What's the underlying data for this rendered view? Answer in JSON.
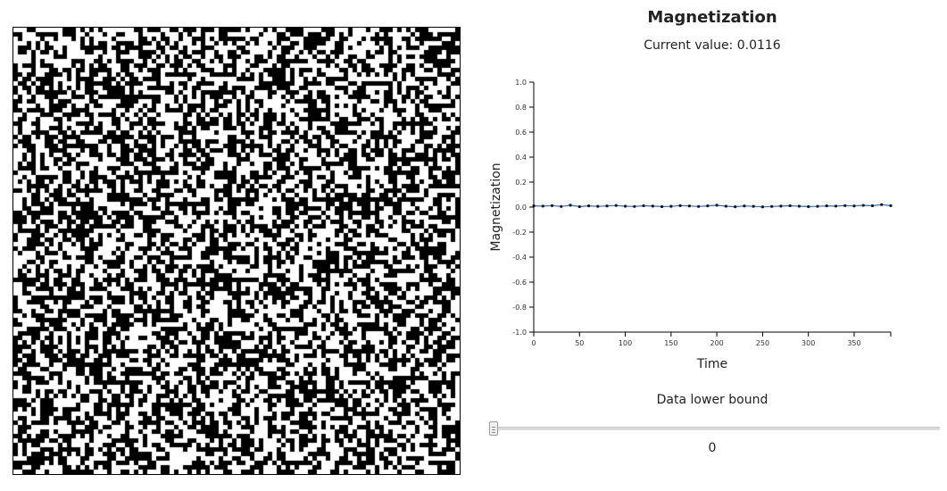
{
  "lattice": {
    "size": 100,
    "up_color": "#000000",
    "down_color": "#ffffff"
  },
  "magnetization": {
    "title": "Magnetization",
    "current_label": "Current value: 0.0116",
    "current_value": 0.0116
  },
  "chart_data": {
    "type": "line",
    "title": "",
    "xlabel": "Time",
    "ylabel": "Magnetization",
    "xlim": [
      0,
      390
    ],
    "ylim": [
      -1.0,
      1.0
    ],
    "xticks": [
      0,
      50,
      100,
      150,
      200,
      250,
      300,
      350
    ],
    "yticks": [
      -1.0,
      -0.8,
      -0.6,
      -0.4,
      -0.2,
      0.0,
      0.2,
      0.4,
      0.6,
      0.8,
      1.0
    ],
    "xtick_labels": [
      "0",
      "50",
      "100",
      "150",
      "200",
      "250",
      "300",
      "350"
    ],
    "ytick_labels": [
      "-1.0",
      "-0.8",
      "-0.6",
      "-0.4",
      "-0.2",
      "0.0",
      "0.2",
      "0.4",
      "0.6",
      "0.8",
      "1.0"
    ],
    "grid": false,
    "series": [
      {
        "line_color": "#2b6cb0",
        "marker_color": "#111111",
        "x": [
          0,
          10,
          20,
          30,
          40,
          50,
          60,
          70,
          80,
          90,
          100,
          110,
          120,
          130,
          140,
          150,
          160,
          170,
          180,
          190,
          200,
          210,
          220,
          230,
          240,
          250,
          260,
          270,
          280,
          290,
          300,
          310,
          320,
          330,
          340,
          350,
          360,
          370,
          380,
          390
        ],
        "y": [
          0.01,
          0.008,
          0.012,
          0.005,
          0.015,
          0.004,
          0.01,
          0.006,
          0.009,
          0.013,
          0.007,
          0.005,
          0.011,
          0.008,
          0.004,
          0.006,
          0.012,
          0.009,
          0.005,
          0.01,
          0.015,
          0.007,
          0.003,
          0.009,
          0.006,
          0.002,
          0.005,
          0.008,
          0.011,
          0.007,
          0.004,
          0.006,
          0.01,
          0.008,
          0.012,
          0.009,
          0.014,
          0.011,
          0.02,
          0.0116
        ]
      }
    ]
  },
  "slider": {
    "label": "Data lower bound",
    "value_text": "0",
    "value": 0,
    "min": 0,
    "max": 390
  }
}
